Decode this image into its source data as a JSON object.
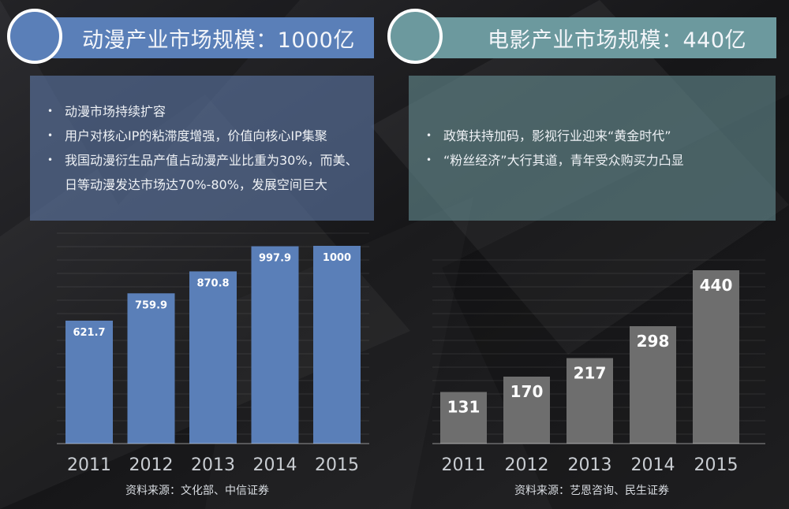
{
  "chart_data": [
    {
      "type": "bar",
      "title": "动漫产业市场规模：1000亿",
      "categories": [
        "2011",
        "2012",
        "2013",
        "2014",
        "2015"
      ],
      "values": [
        621.7,
        759.9,
        870.8,
        997.9,
        1000
      ],
      "value_labels": [
        "621.7",
        "759.9",
        "870.8",
        "997.9",
        "1000"
      ],
      "ylim": [
        0,
        1000
      ],
      "grid": true,
      "bar_color": "#5a7fb8",
      "source": "资料来源：文化部、中信证券"
    },
    {
      "type": "bar",
      "title": "电影产业市场规模：440亿",
      "categories": [
        "2011",
        "2012",
        "2013",
        "2014",
        "2015"
      ],
      "values": [
        131,
        170,
        217,
        298,
        440
      ],
      "value_labels": [
        "131",
        "170",
        "217",
        "298",
        "440"
      ],
      "ylim": [
        0,
        440
      ],
      "grid": true,
      "bar_color": "#6e6e6e",
      "source": "资料来源：艺恩咨询、民生证券"
    }
  ],
  "left_panel": {
    "bullets": [
      {
        "mark": "•",
        "text": "动漫市场持续扩容"
      },
      {
        "mark": "•",
        "text": "用户对核心IP的粘滞度增强，价值向核心IP集聚"
      },
      {
        "mark": "•",
        "text": "我国动漫衍生品产值占动漫产业比重为30%，而美、日等动漫发达市场达70%-80%，发展空间巨大"
      }
    ]
  },
  "right_panel": {
    "bullets": [
      {
        "mark": "•",
        "text": "政策扶持加码，影视行业迎来“黄金时代”"
      },
      {
        "mark": "•",
        "text": "“粉丝经济”大行其道，青年受众购买力凸显"
      }
    ]
  }
}
